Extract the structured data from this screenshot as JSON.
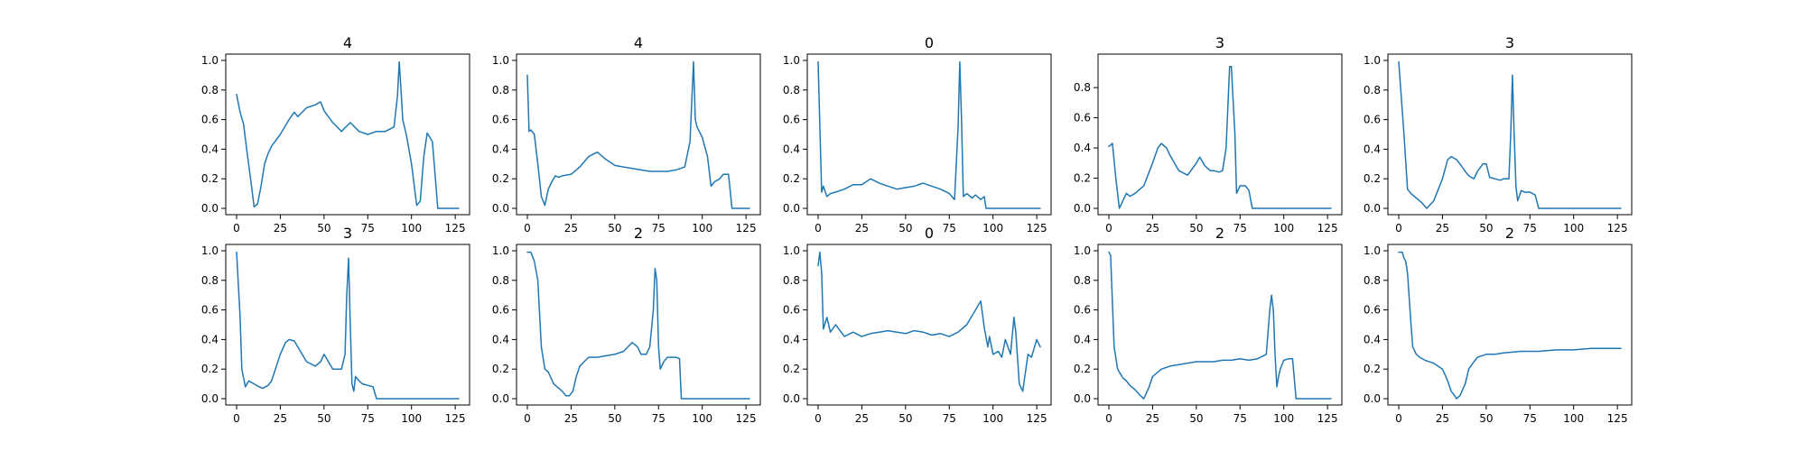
{
  "colors": {
    "series": "#1f77b4"
  },
  "chart_data": [
    {
      "type": "line",
      "title": "4",
      "xlabel": "",
      "ylabel": "",
      "xlim": [
        0,
        127
      ],
      "ylim": [
        0,
        1.0
      ],
      "xticks": [
        "0",
        "25",
        "50",
        "75",
        "100",
        "125"
      ],
      "yticks": [
        "0.0",
        "0.2",
        "0.4",
        "0.6",
        "0.8",
        "1.0"
      ],
      "series": [
        {
          "x": [
            0,
            2,
            4,
            6,
            8,
            10,
            12,
            14,
            16,
            18,
            20,
            25,
            30,
            33,
            35,
            40,
            45,
            48,
            50,
            55,
            60,
            65,
            70,
            75,
            80,
            85,
            90,
            92,
            93,
            94,
            95,
            97,
            100,
            103,
            105,
            107,
            109,
            112,
            115,
            117,
            127
          ],
          "values": [
            0.77,
            0.65,
            0.57,
            0.38,
            0.2,
            0.01,
            0.03,
            0.15,
            0.3,
            0.37,
            0.42,
            0.5,
            0.6,
            0.65,
            0.62,
            0.68,
            0.7,
            0.72,
            0.66,
            0.58,
            0.52,
            0.58,
            0.52,
            0.5,
            0.52,
            0.52,
            0.55,
            0.76,
            0.99,
            0.8,
            0.6,
            0.5,
            0.3,
            0.02,
            0.05,
            0.35,
            0.51,
            0.45,
            0.0,
            0.0,
            0.0
          ]
        }
      ]
    },
    {
      "type": "line",
      "title": "4",
      "xlabel": "",
      "ylabel": "",
      "xlim": [
        0,
        127
      ],
      "ylim": [
        0,
        1.0
      ],
      "xticks": [
        "0",
        "25",
        "50",
        "75",
        "100",
        "125"
      ],
      "yticks": [
        "0.0",
        "0.2",
        "0.4",
        "0.6",
        "0.8",
        "1.0"
      ],
      "series": [
        {
          "x": [
            0,
            1,
            2,
            4,
            6,
            8,
            10,
            12,
            14,
            16,
            18,
            20,
            25,
            30,
            35,
            40,
            45,
            50,
            55,
            60,
            65,
            70,
            75,
            80,
            85,
            90,
            93,
            95,
            96,
            97,
            100,
            103,
            105,
            107,
            110,
            112,
            115,
            117,
            127
          ],
          "values": [
            0.9,
            0.52,
            0.53,
            0.5,
            0.3,
            0.08,
            0.02,
            0.13,
            0.18,
            0.22,
            0.21,
            0.22,
            0.23,
            0.28,
            0.35,
            0.38,
            0.33,
            0.29,
            0.28,
            0.27,
            0.26,
            0.25,
            0.25,
            0.25,
            0.26,
            0.28,
            0.45,
            0.99,
            0.6,
            0.55,
            0.48,
            0.35,
            0.15,
            0.18,
            0.2,
            0.23,
            0.23,
            0.0,
            0.0
          ]
        }
      ]
    },
    {
      "type": "line",
      "title": "0",
      "xlabel": "",
      "ylabel": "",
      "xlim": [
        0,
        127
      ],
      "ylim": [
        0,
        1.0
      ],
      "xticks": [
        "0",
        "25",
        "50",
        "75",
        "100",
        "125"
      ],
      "yticks": [
        "0.0",
        "0.2",
        "0.4",
        "0.6",
        "0.8",
        "1.0"
      ],
      "series": [
        {
          "x": [
            0,
            2,
            3,
            5,
            7,
            10,
            15,
            20,
            25,
            30,
            35,
            40,
            45,
            50,
            55,
            60,
            65,
            70,
            75,
            78,
            80,
            81,
            82,
            83,
            85,
            88,
            90,
            93,
            95,
            96,
            127
          ],
          "values": [
            0.99,
            0.11,
            0.15,
            0.08,
            0.1,
            0.11,
            0.13,
            0.16,
            0.16,
            0.2,
            0.17,
            0.15,
            0.13,
            0.14,
            0.15,
            0.17,
            0.15,
            0.13,
            0.1,
            0.06,
            0.55,
            0.99,
            0.6,
            0.08,
            0.1,
            0.07,
            0.09,
            0.06,
            0.08,
            0.0,
            0.0
          ]
        }
      ]
    },
    {
      "type": "line",
      "title": "3",
      "xlabel": "",
      "ylabel": "",
      "xlim": [
        0,
        127
      ],
      "ylim": [
        0,
        0.98
      ],
      "xticks": [
        "0",
        "25",
        "50",
        "75",
        "100",
        "125"
      ],
      "yticks": [
        "0.0",
        "0.2",
        "0.4",
        "0.6",
        "0.8"
      ],
      "series": [
        {
          "x": [
            0,
            2,
            4,
            6,
            8,
            10,
            12,
            15,
            20,
            25,
            28,
            30,
            33,
            35,
            40,
            45,
            50,
            52,
            55,
            58,
            60,
            63,
            65,
            67,
            69,
            70,
            72,
            73,
            75,
            78,
            80,
            82,
            127
          ],
          "values": [
            0.41,
            0.43,
            0.2,
            0.0,
            0.05,
            0.1,
            0.08,
            0.1,
            0.15,
            0.3,
            0.4,
            0.43,
            0.4,
            0.35,
            0.25,
            0.22,
            0.3,
            0.34,
            0.28,
            0.25,
            0.25,
            0.24,
            0.25,
            0.4,
            0.94,
            0.94,
            0.5,
            0.1,
            0.15,
            0.15,
            0.12,
            0.0,
            0.0
          ]
        }
      ]
    },
    {
      "type": "line",
      "title": "3",
      "xlabel": "",
      "ylabel": "",
      "xlim": [
        0,
        127
      ],
      "ylim": [
        0,
        1.0
      ],
      "xticks": [
        "0",
        "25",
        "50",
        "75",
        "100",
        "125"
      ],
      "yticks": [
        "0.0",
        "0.2",
        "0.4",
        "0.6",
        "0.8",
        "1.0"
      ],
      "series": [
        {
          "x": [
            0,
            3,
            5,
            7,
            10,
            13,
            16,
            20,
            25,
            28,
            30,
            33,
            35,
            38,
            40,
            43,
            45,
            48,
            50,
            52,
            55,
            58,
            60,
            63,
            64,
            65,
            66,
            67,
            68,
            70,
            72,
            75,
            78,
            80,
            127
          ],
          "values": [
            0.99,
            0.5,
            0.13,
            0.1,
            0.07,
            0.04,
            0.0,
            0.05,
            0.2,
            0.33,
            0.35,
            0.33,
            0.3,
            0.25,
            0.22,
            0.2,
            0.25,
            0.3,
            0.3,
            0.21,
            0.2,
            0.19,
            0.2,
            0.2,
            0.5,
            0.9,
            0.5,
            0.15,
            0.05,
            0.12,
            0.11,
            0.11,
            0.09,
            0.0,
            0.0
          ]
        }
      ]
    },
    {
      "type": "line",
      "title": "3",
      "xlabel": "",
      "ylabel": "",
      "xlim": [
        0,
        127
      ],
      "ylim": [
        0,
        1.0
      ],
      "xticks": [
        "0",
        "25",
        "50",
        "75",
        "100",
        "125"
      ],
      "yticks": [
        "0.0",
        "0.2",
        "0.4",
        "0.6",
        "0.8",
        "1.0"
      ],
      "series": [
        {
          "x": [
            0,
            2,
            3,
            5,
            7,
            10,
            13,
            15,
            18,
            20,
            25,
            28,
            30,
            33,
            35,
            40,
            45,
            48,
            50,
            55,
            60,
            62,
            63,
            64,
            65,
            66,
            67,
            68,
            70,
            72,
            75,
            78,
            80,
            127
          ],
          "values": [
            0.99,
            0.55,
            0.2,
            0.08,
            0.12,
            0.1,
            0.08,
            0.07,
            0.09,
            0.12,
            0.3,
            0.38,
            0.4,
            0.39,
            0.35,
            0.25,
            0.22,
            0.25,
            0.3,
            0.2,
            0.2,
            0.3,
            0.7,
            0.95,
            0.5,
            0.1,
            0.05,
            0.15,
            0.12,
            0.1,
            0.09,
            0.08,
            0.0,
            0.0
          ]
        }
      ]
    },
    {
      "type": "line",
      "title": "2",
      "xlabel": "",
      "ylabel": "",
      "xlim": [
        0,
        127
      ],
      "ylim": [
        0,
        1.0
      ],
      "xticks": [
        "0",
        "25",
        "50",
        "75",
        "100",
        "125"
      ],
      "yticks": [
        "0.0",
        "0.2",
        "0.4",
        "0.6",
        "0.8",
        "1.0"
      ],
      "series": [
        {
          "x": [
            0,
            2,
            4,
            6,
            8,
            10,
            12,
            15,
            20,
            22,
            24,
            26,
            28,
            30,
            35,
            40,
            45,
            50,
            55,
            60,
            63,
            65,
            68,
            70,
            72,
            73,
            74,
            75,
            76,
            78,
            80,
            83,
            85,
            87,
            88,
            127
          ],
          "values": [
            0.99,
            0.99,
            0.93,
            0.8,
            0.35,
            0.2,
            0.18,
            0.1,
            0.05,
            0.02,
            0.02,
            0.05,
            0.15,
            0.22,
            0.28,
            0.28,
            0.29,
            0.3,
            0.32,
            0.38,
            0.35,
            0.3,
            0.3,
            0.35,
            0.6,
            0.88,
            0.8,
            0.35,
            0.2,
            0.25,
            0.28,
            0.28,
            0.28,
            0.27,
            0.0,
            0.0
          ]
        }
      ]
    },
    {
      "type": "line",
      "title": "0",
      "xlabel": "",
      "ylabel": "",
      "xlim": [
        0,
        127
      ],
      "ylim": [
        0,
        1.0
      ],
      "xticks": [
        "0",
        "25",
        "50",
        "75",
        "100",
        "125"
      ],
      "yticks": [
        "0.0",
        "0.2",
        "0.4",
        "0.6",
        "0.8",
        "1.0"
      ],
      "series": [
        {
          "x": [
            0,
            1,
            2,
            3,
            5,
            7,
            10,
            15,
            20,
            25,
            30,
            35,
            40,
            45,
            50,
            55,
            60,
            65,
            70,
            75,
            80,
            85,
            90,
            93,
            95,
            97,
            98,
            100,
            103,
            105,
            107,
            110,
            112,
            113,
            115,
            117,
            120,
            122,
            125,
            127
          ],
          "values": [
            0.9,
            0.99,
            0.85,
            0.47,
            0.55,
            0.45,
            0.5,
            0.42,
            0.45,
            0.42,
            0.44,
            0.45,
            0.46,
            0.45,
            0.44,
            0.46,
            0.45,
            0.43,
            0.44,
            0.42,
            0.45,
            0.5,
            0.6,
            0.66,
            0.48,
            0.35,
            0.42,
            0.3,
            0.32,
            0.28,
            0.4,
            0.3,
            0.55,
            0.45,
            0.1,
            0.05,
            0.3,
            0.28,
            0.4,
            0.35
          ]
        }
      ]
    },
    {
      "type": "line",
      "title": "2",
      "xlabel": "",
      "ylabel": "",
      "xlim": [
        0,
        127
      ],
      "ylim": [
        0,
        1.0
      ],
      "xticks": [
        "0",
        "25",
        "50",
        "75",
        "100",
        "125"
      ],
      "yticks": [
        "0.0",
        "0.2",
        "0.4",
        "0.6",
        "0.8",
        "1.0"
      ],
      "series": [
        {
          "x": [
            0,
            1,
            2,
            3,
            5,
            8,
            10,
            12,
            15,
            18,
            20,
            23,
            25,
            30,
            35,
            40,
            45,
            50,
            55,
            60,
            65,
            70,
            75,
            80,
            85,
            90,
            92,
            93,
            94,
            95,
            96,
            97,
            98,
            100,
            103,
            105,
            107,
            127
          ],
          "values": [
            0.99,
            0.97,
            0.65,
            0.35,
            0.2,
            0.14,
            0.12,
            0.09,
            0.06,
            0.02,
            0.0,
            0.08,
            0.15,
            0.2,
            0.22,
            0.23,
            0.24,
            0.25,
            0.25,
            0.25,
            0.26,
            0.26,
            0.27,
            0.26,
            0.27,
            0.3,
            0.6,
            0.7,
            0.6,
            0.3,
            0.08,
            0.15,
            0.2,
            0.26,
            0.27,
            0.27,
            0.0,
            0.0
          ]
        }
      ]
    },
    {
      "type": "line",
      "title": "2",
      "xlabel": "",
      "ylabel": "",
      "xlim": [
        0,
        127
      ],
      "ylim": [
        0,
        1.0
      ],
      "xticks": [
        "0",
        "25",
        "50",
        "75",
        "100",
        "125"
      ],
      "yticks": [
        "0.0",
        "0.2",
        "0.4",
        "0.6",
        "0.8",
        "1.0"
      ],
      "series": [
        {
          "x": [
            0,
            2,
            3,
            4,
            5,
            7,
            8,
            10,
            12,
            15,
            20,
            25,
            28,
            30,
            32,
            33,
            35,
            38,
            40,
            43,
            45,
            50,
            55,
            60,
            70,
            80,
            90,
            100,
            110,
            120,
            127
          ],
          "values": [
            0.99,
            0.99,
            0.95,
            0.93,
            0.85,
            0.5,
            0.35,
            0.3,
            0.28,
            0.26,
            0.24,
            0.2,
            0.12,
            0.05,
            0.02,
            0.0,
            0.02,
            0.1,
            0.2,
            0.25,
            0.28,
            0.3,
            0.3,
            0.31,
            0.32,
            0.32,
            0.33,
            0.33,
            0.34,
            0.34,
            0.34
          ]
        }
      ]
    }
  ]
}
